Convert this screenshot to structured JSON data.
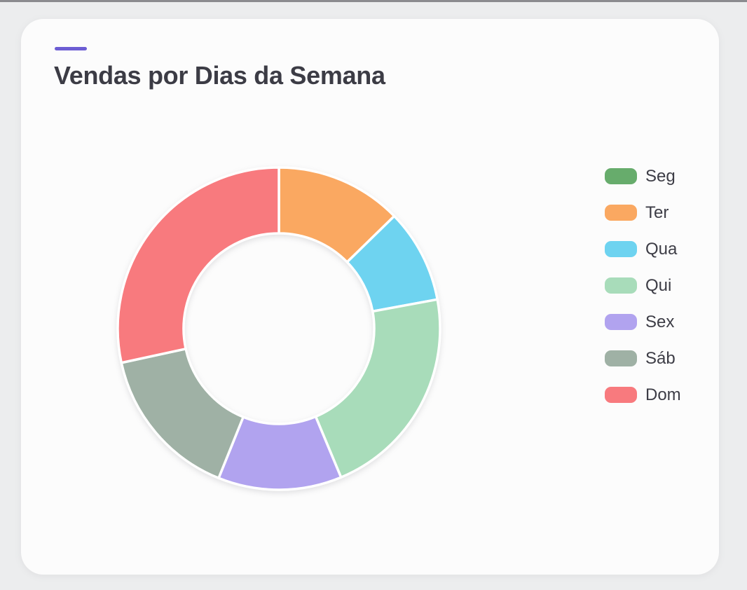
{
  "window": {
    "top_edge_color": "#8B8B8F",
    "background_color": "#ECEDEE"
  },
  "card": {
    "background_color": "#FCFCFC",
    "accent_bar_color": "#6C5DD3",
    "title": "Vendas por Dias da Semana",
    "title_color": "#3C3C45"
  },
  "chart_data": {
    "type": "pie",
    "subtype": "donut",
    "title": "Vendas por Dias da Semana",
    "labels": [
      "Seg",
      "Ter",
      "Qua",
      "Qui",
      "Sex",
      "Sáb",
      "Dom"
    ],
    "values_percent": [
      0,
      12.7,
      9.4,
      21.6,
      12.4,
      15.5,
      28.4
    ],
    "colors": [
      "#67AC6C",
      "#FAA861",
      "#6ED3F0",
      "#A8DCBA",
      "#B1A3EF",
      "#9FB1A5",
      "#F87A7E"
    ],
    "start_angle_deg": 0,
    "direction": "clockwise",
    "donut_hole_ratio": 0.59,
    "slice_gap_color": "#FFFFFF",
    "slice_gap_width": 3.5,
    "legend_position": "right",
    "legend_text_color": "#3D3D46",
    "hidden_zero_slices": [
      "Seg"
    ]
  }
}
